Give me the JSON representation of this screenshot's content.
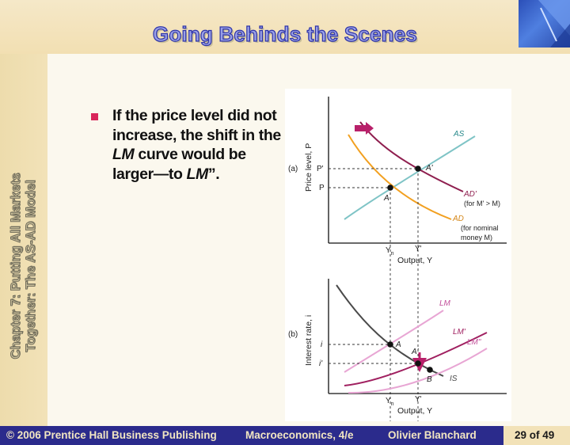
{
  "slide": {
    "title": "Going Behinds the Scenes",
    "sidebar_line1": "Chapter 7: Putting All Markets",
    "sidebar_line2": "Together: The AS-AD Model",
    "bullet_html": "If the price level did not increase, the shift in the <i>LM</i> curve would be larger—to <i>LM</i>”."
  },
  "footer": {
    "copyright": "© 2006 Prentice Hall Business Publishing",
    "book": "Macroeconomics, 4/e",
    "author": "Olivier Blanchard",
    "page": "29 of 49"
  },
  "figure": {
    "panel_a": {
      "label": "(a)",
      "ylabel": "Price level, P",
      "xlabel": "Output, Y",
      "y_ticks": [
        "P'",
        "P"
      ],
      "x_ticks": [
        "Y",
        "n",
        "Y'"
      ],
      "curves": {
        "as": "AS",
        "ad_new": "AD'",
        "ad_new_note": "(for M' > M)",
        "ad": "AD",
        "ad_note1": "(for nominal",
        "ad_note2": "money M)"
      },
      "points": [
        "A",
        "A'"
      ]
    },
    "panel_b": {
      "label": "(b)",
      "ylabel": "Interest rate, i",
      "xlabel": "Output, Y",
      "y_ticks": [
        "i",
        "i'"
      ],
      "x_ticks": [
        "Y",
        "n",
        "Y'"
      ],
      "curves": {
        "lm": "LM",
        "lm1": "LM'",
        "lm2": "LM\"",
        "is": "IS"
      },
      "points": [
        "A",
        "A'",
        "B"
      ]
    },
    "colors": {
      "as": "#7fc4c6",
      "ad_new": "#8f1f4f",
      "ad": "#f2a020",
      "lm": "#e8a6d4",
      "lm1": "#a02060",
      "is": "#4a4a4a",
      "arrow": "#b8206a"
    }
  }
}
